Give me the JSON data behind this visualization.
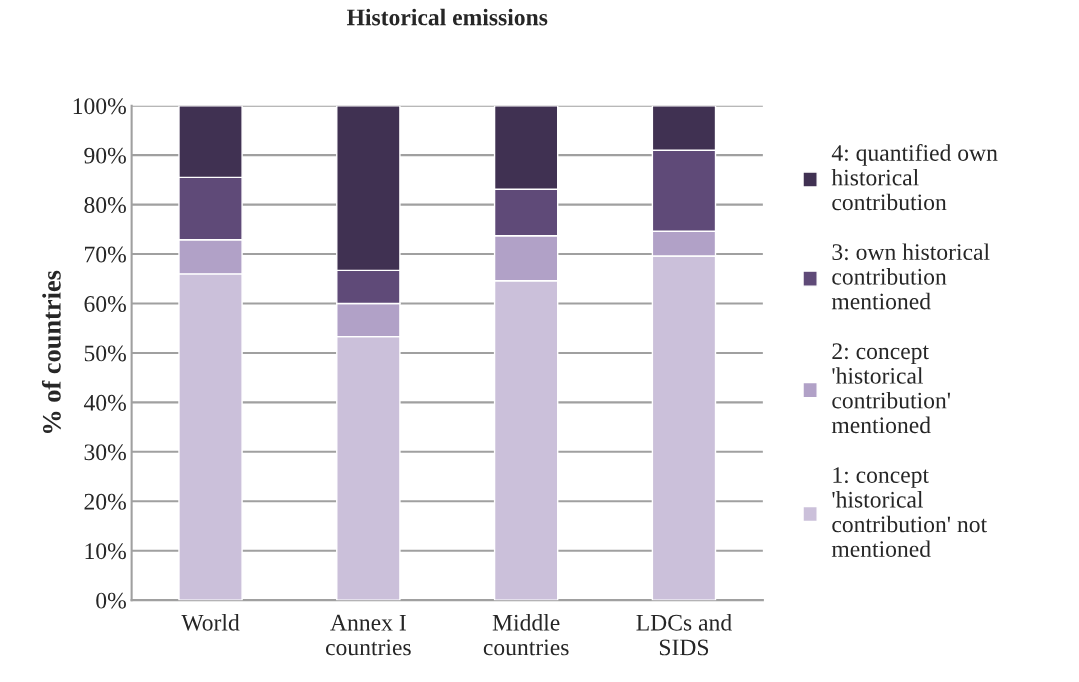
{
  "chart_data": {
    "type": "bar",
    "title": "Historical emissions",
    "ylabel": "% of countries",
    "categories": [
      "World",
      "Annex I\ncountries",
      "Middle\ncountries",
      "LDCs and\nSIDS"
    ],
    "stacked": true,
    "series": [
      {
        "name": "1: concept\n'historical\ncontribution' not\nmentioned",
        "color": "#cbc0da",
        "values": [
          66.0,
          53.3,
          64.6,
          69.6
        ]
      },
      {
        "name": "2: concept\n'historical\ncontribution'\nmentioned",
        "color": "#b1a1c7",
        "values": [
          6.9,
          6.7,
          9.1,
          5.0
        ]
      },
      {
        "name": "3: own historical\ncontribution\nmentioned",
        "color": "#5f4a78",
        "values": [
          12.6,
          6.7,
          9.4,
          16.4
        ]
      },
      {
        "name": "4: quantified own\nhistorical\ncontribution",
        "color": "#403152",
        "values": [
          14.5,
          33.3,
          16.9,
          9.0
        ]
      }
    ],
    "ylim": [
      0,
      100
    ],
    "yticks": [
      {
        "value": 0,
        "label": "0%"
      },
      {
        "value": 10,
        "label": "10%"
      },
      {
        "value": 20,
        "label": "20%"
      },
      {
        "value": 30,
        "label": "30%"
      },
      {
        "value": 40,
        "label": "40%"
      },
      {
        "value": 50,
        "label": "50%"
      },
      {
        "value": 60,
        "label": "60%"
      },
      {
        "value": 70,
        "label": "70%"
      },
      {
        "value": 80,
        "label": "80%"
      },
      {
        "value": 90,
        "label": "90%"
      },
      {
        "value": 100,
        "label": "100%"
      }
    ],
    "grid": "y",
    "legend": "right"
  }
}
